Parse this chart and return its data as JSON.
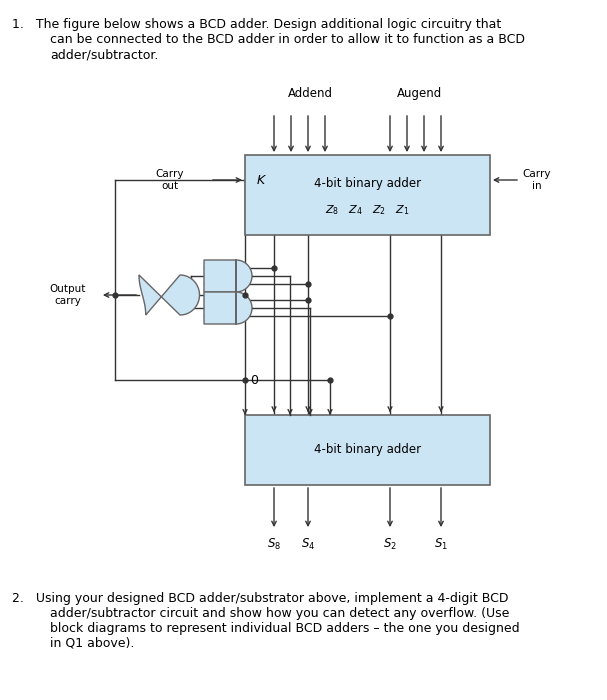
{
  "bg_color": "#ffffff",
  "text_color": "#000000",
  "box_fill": "#ddeeff",
  "box_edge": "#777777",
  "gate_fill": "#cce5f5",
  "gate_edge": "#666666",
  "line_color": "#333333",
  "q1_line1": "1.   The figure below shows a BCD adder. Design additional logic circuitry that",
  "q1_line2": "can be connected to the BCD adder in order to allow it to function as a BCD",
  "q1_line3": "adder/subtractor.",
  "q2_line1": "2.   Using your designed BCD adder/substrator above, implement a 4-digit BCD",
  "q2_line2": "adder/subtractor circuit and show how you can detect any overflow. (Use",
  "q2_line3": "block diagrams to represent individual BCD adders – the one you designed",
  "q2_line4": "in Q1 above).",
  "addend_label": "Addend",
  "augend_label": "Augend",
  "carry_out_label": "Carry\nout",
  "carry_in_label": "Carry\nin",
  "output_carry_label": "Output\ncarry",
  "K_label": "K",
  "zero_label": "0",
  "box1_label1": "4-bit binary adder",
  "box2_label": "4-bit binary adder",
  "fontsize_text": 9,
  "fontsize_small": 7.5,
  "fontsize_label": 8.5,
  "fontsize_gate": 8
}
